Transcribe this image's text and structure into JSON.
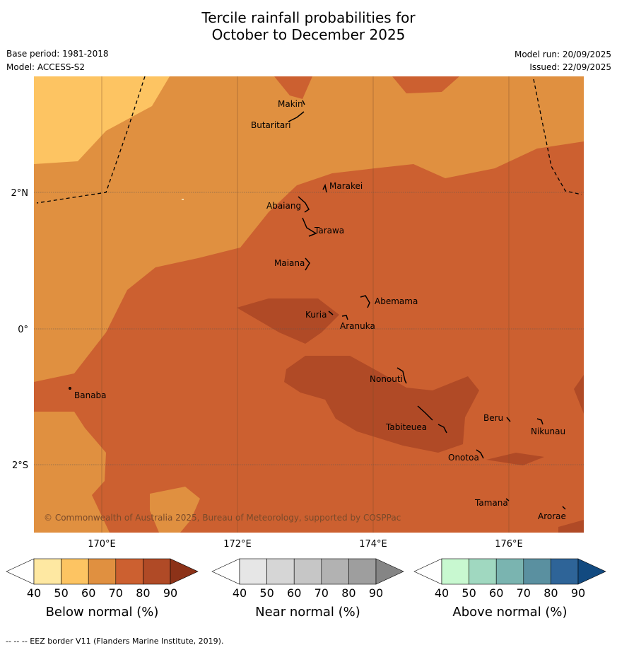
{
  "title": {
    "line1": "Tercile rainfall probabilities for",
    "line2": "October to December 2025"
  },
  "meta": {
    "base_period": "Base period: 1981-2018",
    "model": "Model: ACCESS-S2",
    "model_run": "Model run: 20/09/2025",
    "issued": "Issued: 22/09/2025"
  },
  "map": {
    "lat_labels": [
      "2°N",
      "0°",
      "2°S"
    ],
    "lon_labels": [
      "170°E",
      "172°E",
      "174°E",
      "176°E"
    ],
    "places": [
      "Makin",
      "Butaritari",
      "Marakei",
      "Abaiang",
      "Tarawa",
      "Maiana",
      "Abemama",
      "Kuria",
      "Aranuka",
      "Banaba",
      "Nonouti",
      "Tabiteuea",
      "Beru",
      "Nikunau",
      "Onotoa",
      "Tamana",
      "Arorae"
    ],
    "copyright": "© Commonwealth of Australia 2025, Bureau of Meteorology, supported by COSPPac"
  },
  "legends": [
    {
      "label": "Below normal (%)",
      "ticks": [
        "40",
        "50",
        "60",
        "70",
        "80",
        "90"
      ],
      "colors": [
        "#ffffff",
        "#fee8a2",
        "#fdc462",
        "#e09040",
        "#cc6030",
        "#b04a26",
        "#8c3218"
      ]
    },
    {
      "label": "Near normal (%)",
      "ticks": [
        "40",
        "50",
        "60",
        "70",
        "80",
        "90"
      ],
      "colors": [
        "#ffffff",
        "#e6e6e6",
        "#d6d6d6",
        "#c6c6c6",
        "#b2b2b2",
        "#9e9e9e",
        "#858585"
      ]
    },
    {
      "label": "Above normal (%)",
      "ticks": [
        "40",
        "50",
        "60",
        "70",
        "80",
        "90"
      ],
      "colors": [
        "#ffffff",
        "#c8f8d0",
        "#a0d8c0",
        "#7ab4b0",
        "#5a90a0",
        "#2e6498",
        "#124a80"
      ]
    }
  ],
  "footnote": "-- -- -- EEZ border V11 (Flanders Marine Institute, 2019)."
}
